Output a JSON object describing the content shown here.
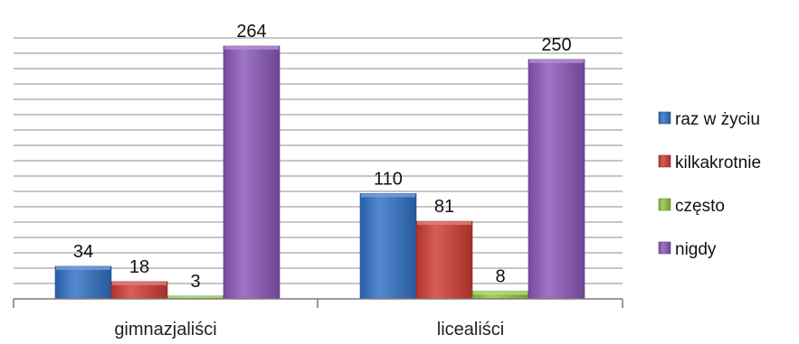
{
  "chart_data": {
    "type": "bar",
    "categories": [
      "gimnazjaliści",
      "licealiści"
    ],
    "series": [
      {
        "name": "raz w życiu",
        "values": [
          34,
          110
        ],
        "color": "#2f6fc4"
      },
      {
        "name": "kilkakrotnie",
        "values": [
          18,
          81
        ],
        "color": "#cf3b33"
      },
      {
        "name": "często",
        "values": [
          3,
          8
        ],
        "color": "#8fc43c"
      },
      {
        "name": "nigdy",
        "values": [
          264,
          250
        ],
        "color": "#8a56b8"
      }
    ],
    "ylim": [
      0,
      290
    ],
    "gridlines": true,
    "legend_position": "right",
    "data_labels": true
  }
}
